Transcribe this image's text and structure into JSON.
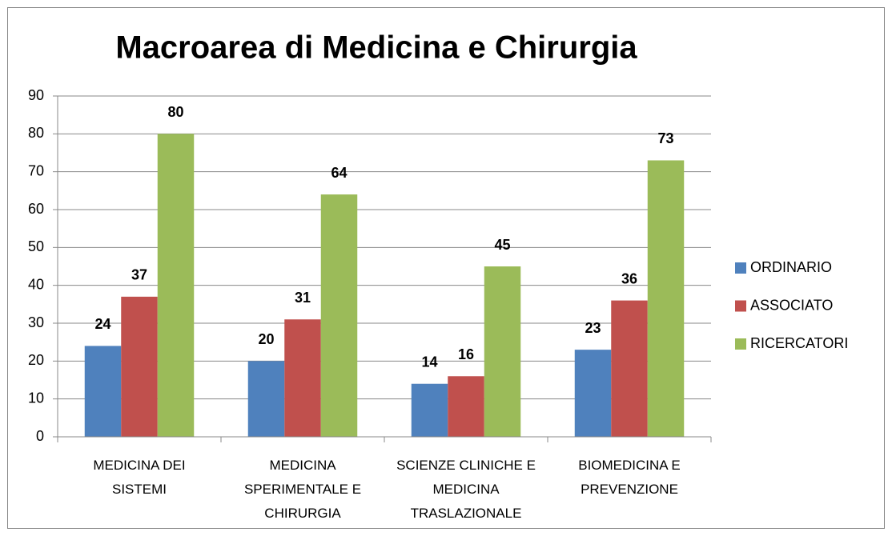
{
  "chart_data": {
    "type": "bar",
    "title": "Macroarea di Medicina e Chirurgia",
    "categories": [
      "MEDICINA DEI SISTEMI",
      "MEDICINA SPERIMENTALE E CHIRURGIA",
      "SCIENZE CLINICHE E MEDICINA TRASLAZIONALE",
      "BIOMEDICINA E PREVENZIONE"
    ],
    "series": [
      {
        "name": "ORDINARIO",
        "color": "#4f81bd",
        "values": [
          24,
          20,
          14,
          23
        ]
      },
      {
        "name": "ASSOCIATO",
        "color": "#c0504d",
        "values": [
          37,
          31,
          16,
          36
        ]
      },
      {
        "name": "RICERCATORI",
        "color": "#9bbb59",
        "values": [
          80,
          64,
          45,
          73
        ]
      }
    ],
    "ylim": [
      0,
      90
    ],
    "yticks": [
      0,
      10,
      20,
      30,
      40,
      50,
      60,
      70,
      80,
      90
    ],
    "grid": true,
    "legend": "right"
  }
}
